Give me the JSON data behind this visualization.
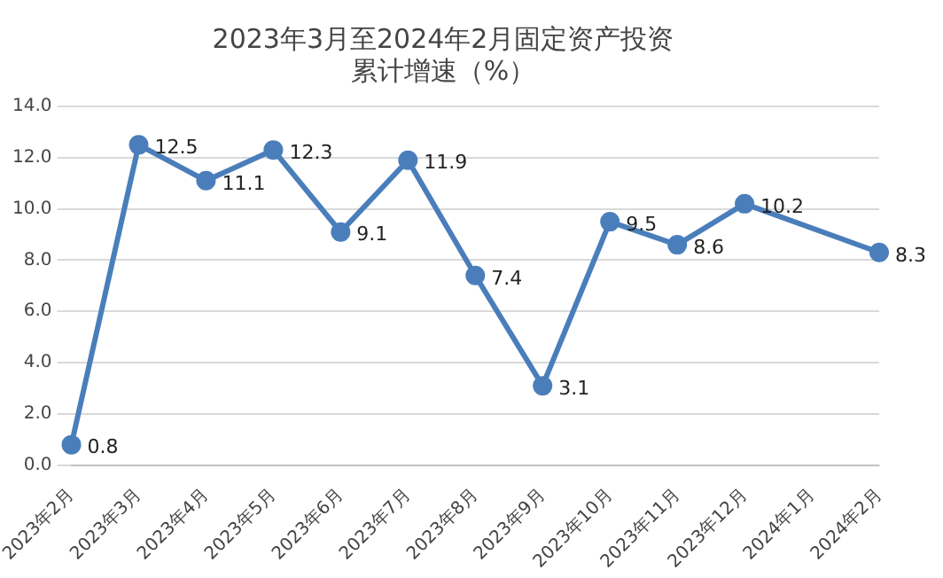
{
  "chart_data": {
    "type": "line",
    "title": "2023年3月至2024年2月固定资产投资累计增速（%）",
    "categories": [
      "2023年2月",
      "2023年3月",
      "2023年4月",
      "2023年5月",
      "2023年6月",
      "2023年7月",
      "2023年8月",
      "2023年9月",
      "2023年10月",
      "2023年11月",
      "2023年12月",
      "2024年1月",
      "2024年2月"
    ],
    "series": [
      {
        "color": "#4a7ebb",
        "values": [
          0.8,
          12.5,
          11.1,
          12.3,
          9.1,
          11.9,
          7.4,
          3.1,
          9.5,
          8.6,
          10.2,
          null,
          8.3
        ]
      }
    ],
    "ylim": [
      0,
      14
    ],
    "yticks": [
      {
        "value": 0,
        "label": "0.0"
      },
      {
        "value": 2,
        "label": "2.0"
      },
      {
        "value": 4,
        "label": "4.0"
      },
      {
        "value": 6,
        "label": "6.0"
      },
      {
        "value": 8,
        "label": "8.0"
      },
      {
        "value": 10,
        "label": "10.0"
      },
      {
        "value": 12,
        "label": "12.0"
      },
      {
        "value": 14,
        "label": "14.0"
      }
    ],
    "grid": "y",
    "legend": false,
    "marker": "circle",
    "line_style": "solid",
    "data_labels": true
  }
}
